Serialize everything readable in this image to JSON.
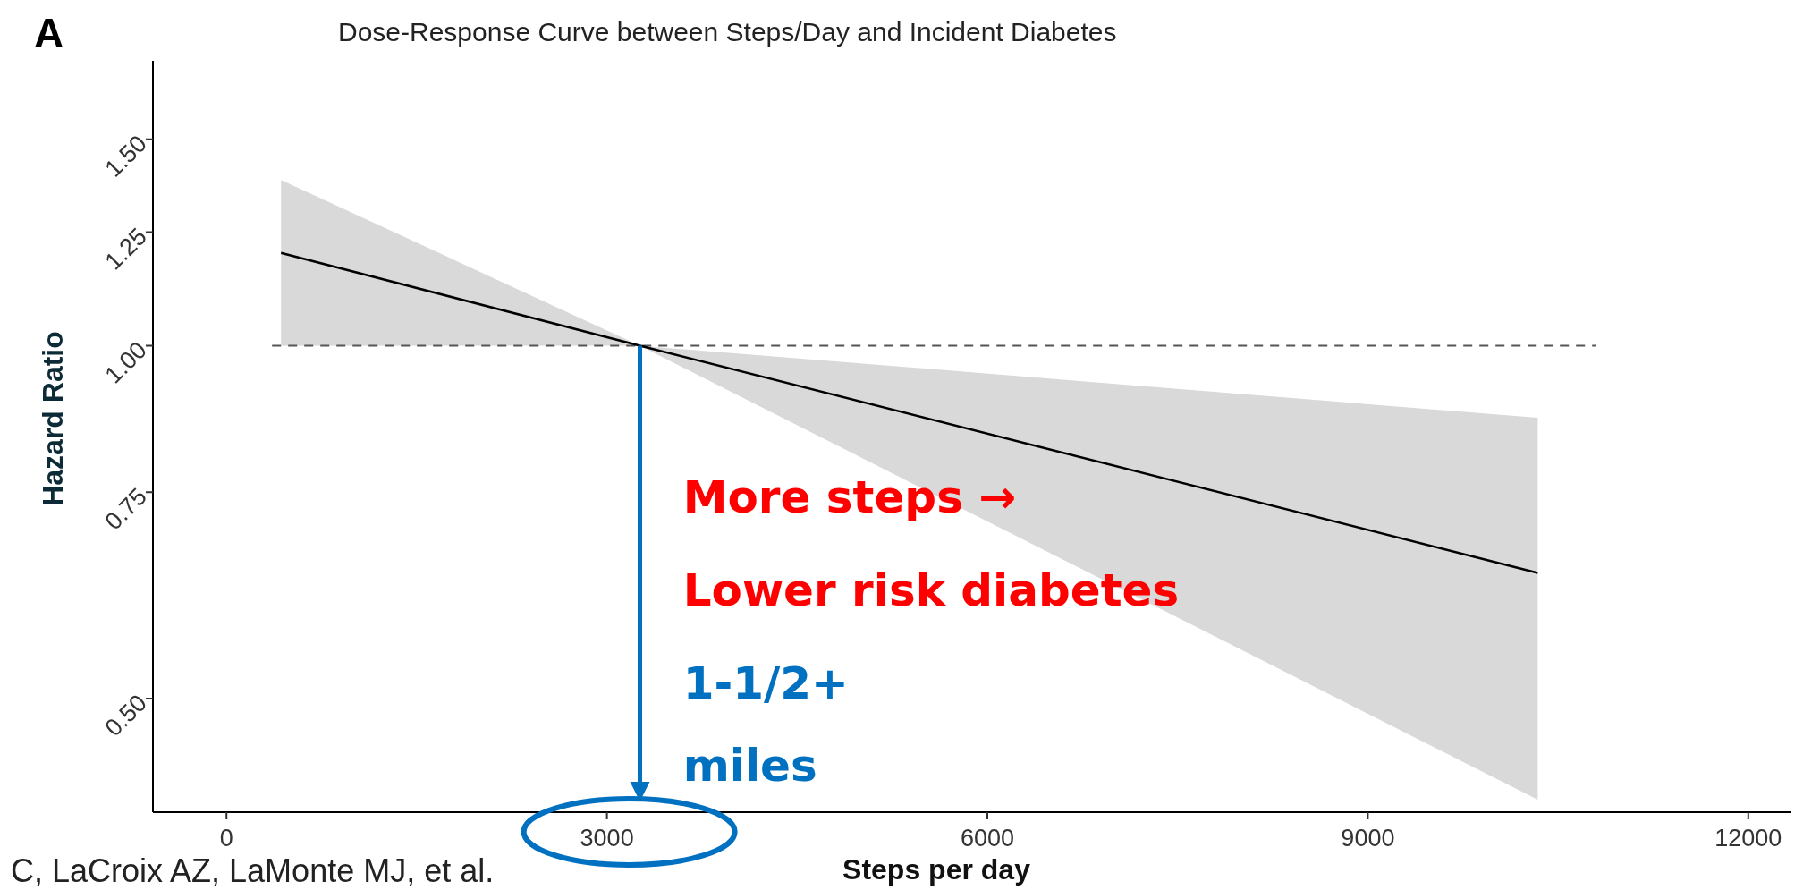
{
  "chart_data": {
    "type": "line",
    "title": "Dose-Response Curve between Steps/Day and Incident Diabetes",
    "xlabel": "Steps per day",
    "ylabel": "Hazard Ratio",
    "x": [
      430,
      3260,
      10340
    ],
    "series": [
      {
        "color": "#000000",
        "values": [
          1.2,
          1.0,
          0.64
        ],
        "lower": [
          1.0,
          1.0,
          0.41
        ],
        "upper": [
          1.385,
          1.0,
          0.868
        ]
      }
    ],
    "xlim": [
      -580,
      12340
    ],
    "xticks": [
      0,
      3000,
      6000,
      9000,
      12000
    ],
    "ylim": [
      0.4,
      1.75
    ],
    "log": true,
    "yticks": [
      {
        "value": 0.5,
        "label": "0.50"
      },
      {
        "value": 0.75,
        "label": "0.75"
      },
      {
        "value": 1,
        "label": "1.00"
      },
      {
        "value": 1.25,
        "label": "1.25"
      },
      {
        "value": 1.5,
        "label": "1.50"
      }
    ],
    "ref_lines": [
      {
        "axis": "y",
        "value": 1,
        "color": "#555555",
        "line_style": "dashed"
      }
    ],
    "annotations": [
      "A",
      "More steps →",
      "Lower risk diabetes",
      "1-1/2+",
      {
        "text": "miles",
        "x": 3260,
        "y": 1.0
      },
      "C, LaCroix AZ, LaMonte MJ, et al."
    ]
  }
}
